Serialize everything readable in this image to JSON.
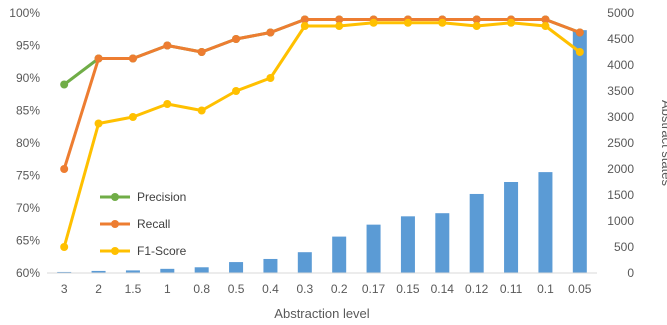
{
  "chart_data": {
    "type": "bar+line",
    "title": "",
    "xlabel": "Abstraction level",
    "ylabel": "",
    "y2label": "Abstract states",
    "categories": [
      "3",
      "2",
      "1.5",
      "1",
      "0.8",
      "0.5",
      "0.4",
      "0.3",
      "0.2",
      "0.17",
      "0.15",
      "0.14",
      "0.12",
      "0.11",
      "0.1",
      "0.05"
    ],
    "ylim": [
      0.6,
      1.0
    ],
    "y_ticks": [
      "60%",
      "65%",
      "70%",
      "75%",
      "80%",
      "85%",
      "90%",
      "95%",
      "100%"
    ],
    "y2lim": [
      0,
      5000
    ],
    "y2_ticks": [
      "0",
      "500",
      "1000",
      "1500",
      "2000",
      "2500",
      "3000",
      "3500",
      "4000",
      "4500",
      "5000"
    ],
    "grid": false,
    "legend_position": "bottom-left",
    "bars": {
      "name": "Abstract states",
      "axis": "right",
      "color": "#5b9bd5",
      "values": [
        20,
        40,
        50,
        80,
        110,
        210,
        270,
        400,
        700,
        930,
        1090,
        1150,
        1520,
        1750,
        1940,
        4670
      ]
    },
    "series": [
      {
        "name": "Precision",
        "color": "#70ad47",
        "values": [
          0.89,
          0.93,
          0.93,
          0.95,
          0.94,
          0.96,
          0.97,
          0.99,
          0.99,
          0.99,
          0.99,
          0.99,
          0.99,
          0.99,
          0.99,
          0.97
        ]
      },
      {
        "name": "Recall",
        "color": "#ed7d31",
        "values": [
          0.76,
          0.93,
          0.93,
          0.95,
          0.94,
          0.96,
          0.97,
          0.99,
          0.99,
          0.99,
          0.99,
          0.99,
          0.99,
          0.99,
          0.99,
          0.97
        ]
      },
      {
        "name": "F1-Score",
        "color": "#ffc000",
        "values": [
          0.64,
          0.83,
          0.84,
          0.86,
          0.85,
          0.88,
          0.9,
          0.98,
          0.98,
          0.985,
          0.985,
          0.985,
          0.98,
          0.985,
          0.98,
          0.94
        ]
      }
    ]
  }
}
